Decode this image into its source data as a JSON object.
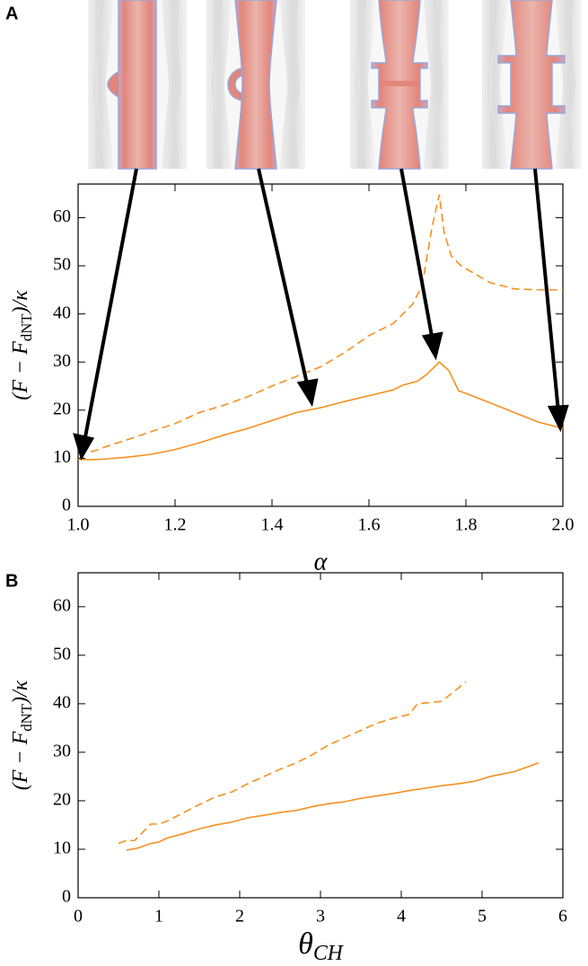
{
  "panel_labels": [
    "A",
    "B"
  ],
  "chart_data": [
    {
      "type": "line",
      "x_label": "α",
      "y_label": [
        "(F − F",
        "dNT",
        ")/κ"
      ],
      "xlim": [
        1,
        2
      ],
      "xticks": [
        {
          "value": 1,
          "label": "1.0"
        },
        1.2,
        1.4,
        1.6,
        1.8,
        {
          "value": 2,
          "label": "2.0"
        }
      ],
      "ylim": [
        0,
        67
      ],
      "yticks": [
        0,
        10,
        20,
        30,
        40,
        50,
        60
      ],
      "series": [
        {
          "color": "#f7901e",
          "style": "solid",
          "x": [
            1.0,
            1.02,
            1.05,
            1.1,
            1.15,
            1.2,
            1.25,
            1.3,
            1.35,
            1.38,
            1.42,
            1.45,
            1.5,
            1.55,
            1.6,
            1.65,
            1.67,
            1.7,
            1.72,
            1.745,
            1.765,
            1.785,
            1.8,
            1.85,
            1.9,
            1.95,
            2.0
          ],
          "values": [
            9.8,
            9.7,
            9.8,
            10.2,
            10.8,
            11.8,
            13.2,
            14.8,
            16.2,
            17.2,
            18.5,
            19.5,
            20.5,
            21.8,
            23,
            24.2,
            25.2,
            26,
            27.5,
            30,
            28.2,
            24,
            23.5,
            21.5,
            19.5,
            17.5,
            16.2
          ]
        },
        {
          "color": "#f7901e",
          "style": "dashed",
          "x": [
            1.0,
            1.03,
            1.06,
            1.1,
            1.15,
            1.2,
            1.25,
            1.3,
            1.35,
            1.4,
            1.45,
            1.5,
            1.55,
            1.6,
            1.63,
            1.65,
            1.67,
            1.69,
            1.71,
            1.72,
            1.73,
            1.745,
            1.755,
            1.77,
            1.79,
            1.85,
            1.9,
            1.95,
            2.0
          ],
          "values": [
            11.5,
            11.4,
            12.5,
            13.8,
            15.5,
            17.2,
            19.5,
            21,
            22.8,
            25,
            27,
            29,
            32,
            35.5,
            37,
            38,
            40,
            42,
            46,
            52,
            58,
            64.8,
            57,
            52,
            50,
            46.5,
            45.2,
            45,
            45
          ]
        }
      ]
    },
    {
      "type": "line",
      "x_label": [
        "θ",
        "CH"
      ],
      "y_label": [
        "(F − F",
        "dNT",
        ")/κ"
      ],
      "xlim": [
        0,
        6
      ],
      "xticks": [
        0,
        1,
        2,
        3,
        4,
        5,
        6
      ],
      "ylim": [
        0,
        67
      ],
      "yticks": [
        0,
        10,
        20,
        30,
        40,
        50,
        60
      ],
      "series": [
        {
          "color": "#f7901e",
          "style": "solid",
          "x": [
            0.6,
            0.75,
            0.9,
            1.0,
            1.1,
            1.3,
            1.5,
            1.7,
            1.9,
            2.1,
            2.3,
            2.5,
            2.7,
            2.9,
            3.1,
            3.3,
            3.5,
            3.7,
            3.9,
            4.1,
            4.3,
            4.5,
            4.7,
            4.9,
            5.1,
            5.4,
            5.7
          ],
          "values": [
            9.8,
            10.3,
            11.2,
            11.5,
            12.3,
            13.2,
            14.2,
            15,
            15.6,
            16.5,
            17,
            17.6,
            18,
            18.8,
            19.4,
            19.8,
            20.5,
            21,
            21.5,
            22.1,
            22.6,
            23.1,
            23.5,
            24,
            25,
            26,
            27.8
          ]
        },
        {
          "color": "#f7901e",
          "style": "dashed",
          "x": [
            0.5,
            0.6,
            0.7,
            0.8,
            0.9,
            1.0,
            1.1,
            1.3,
            1.5,
            1.7,
            1.9,
            2.1,
            2.3,
            2.5,
            2.7,
            2.9,
            3.1,
            3.3,
            3.5,
            3.7,
            3.9,
            4.1,
            4.2,
            4.5,
            4.8
          ],
          "values": [
            11.2,
            11.8,
            11.8,
            13.5,
            15.2,
            15.2,
            15.8,
            17.5,
            19.2,
            20.8,
            21.8,
            23.5,
            25,
            26.5,
            27.8,
            29.5,
            31.5,
            33,
            34.5,
            36,
            37,
            37.8,
            40,
            40.5,
            44.5
          ]
        }
      ]
    }
  ]
}
